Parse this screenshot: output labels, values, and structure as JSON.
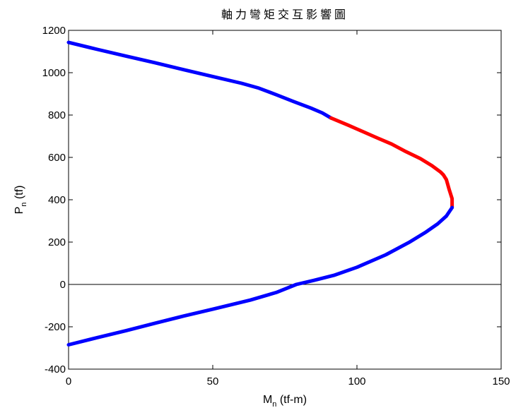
{
  "chart_data": {
    "type": "line",
    "title": "軸力彎矩交互影響圖",
    "xlabel": {
      "main": "M",
      "sub": "n",
      "rest": " (tf-m)"
    },
    "ylabel": {
      "main": "P",
      "sub": "n",
      "rest": " (tf)"
    },
    "xlim": [
      0,
      150
    ],
    "ylim": [
      -400,
      1200
    ],
    "xticks": [
      0,
      50,
      100,
      150
    ],
    "yticks": [
      -400,
      -200,
      0,
      200,
      400,
      600,
      800,
      1000,
      1200
    ],
    "zero_line": true,
    "grid": false,
    "series": [
      {
        "color": "#0000ff",
        "x": [
          0,
          10,
          20,
          30,
          40,
          50,
          60,
          66,
          72,
          78,
          84,
          88,
          91
        ],
        "y": [
          1143,
          1110,
          1078,
          1047,
          1014,
          982,
          950,
          927,
          896,
          864,
          833,
          810,
          786
        ]
      },
      {
        "color": "#ff0000",
        "x": [
          91,
          97,
          102,
          107,
          112,
          117,
          122,
          126,
          129,
          130,
          131,
          132,
          133,
          133
        ],
        "y": [
          786,
          752,
          722,
          692,
          663,
          627,
          594,
          561,
          531,
          517,
          495,
          447,
          405,
          363
        ]
      },
      {
        "color": "#0000ff",
        "x": [
          133,
          131,
          128,
          124,
          118,
          110,
          100,
          92,
          85,
          79,
          72,
          63,
          50,
          40,
          30,
          20,
          10,
          0
        ],
        "y": [
          363,
          323,
          286,
          248,
          198,
          140,
          81,
          43,
          19,
          0,
          -38,
          -74,
          -117,
          -149,
          -183,
          -218,
          -251,
          -285
        ]
      }
    ]
  }
}
